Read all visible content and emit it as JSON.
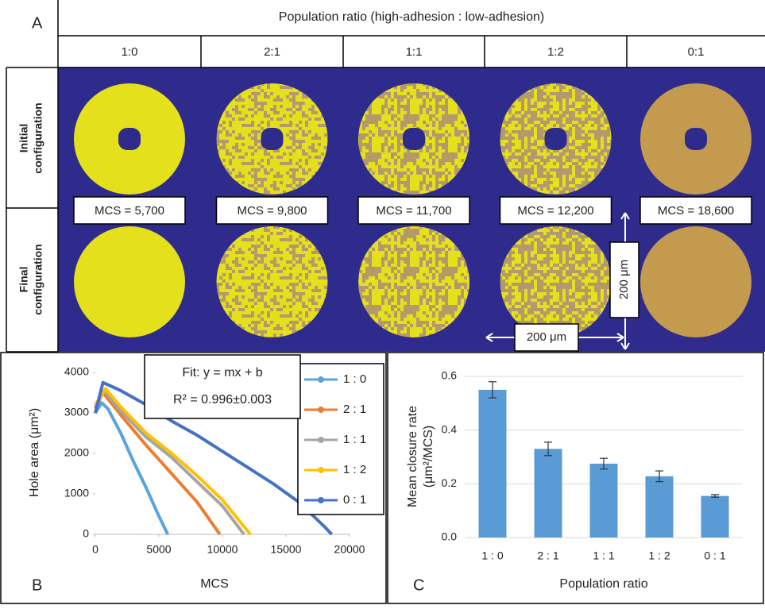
{
  "panel_a": {
    "label": "A",
    "header": "Population ratio (high-adhesion : low-adhesion)",
    "columns": [
      "1:0",
      "2:1",
      "1:1",
      "1:2",
      "0:1"
    ],
    "rows": [
      [
        "Initial",
        "configuration"
      ],
      [
        "Final",
        "configuration"
      ]
    ],
    "mcs": [
      "MCS = 5,700",
      "MCS = 9,800",
      "MCS = 11,700",
      "MCS = 12,200",
      "MCS = 18,600"
    ],
    "scale_bar": "200 μm"
  },
  "chart_data": [
    {
      "type": "line",
      "panel_label": "B",
      "xlabel": "MCS",
      "ylabel": "Hole area (μm²)",
      "annotations": [
        "Fit: y = mx + b",
        "R² = 0.996±0.003"
      ],
      "xlim": [
        0,
        20000
      ],
      "xticks": [
        0,
        5000,
        10000,
        15000,
        20000
      ],
      "ylim": [
        0,
        4000
      ],
      "yticks": [
        0,
        1000,
        2000,
        3000,
        4000
      ],
      "series": [
        {
          "name": "1 : 0",
          "color": "#5ba3dc",
          "x": [
            0,
            500,
            1000,
            2000,
            3000,
            4000,
            5000,
            5700
          ],
          "values": [
            3000,
            3250,
            3100,
            2500,
            1800,
            1150,
            450,
            0
          ]
        },
        {
          "name": "2 : 1",
          "color": "#ed7d31",
          "x": [
            0,
            600,
            2000,
            4000,
            6000,
            8000,
            9800
          ],
          "values": [
            3100,
            3500,
            2950,
            2200,
            1500,
            800,
            0
          ]
        },
        {
          "name": "1 : 1",
          "color": "#a5a5a5",
          "x": [
            0,
            700,
            2000,
            4000,
            6000,
            8000,
            10000,
            11700
          ],
          "values": [
            3150,
            3550,
            3050,
            2400,
            1900,
            1300,
            700,
            0
          ]
        },
        {
          "name": "1 : 2",
          "color": "#ffc000",
          "x": [
            0,
            800,
            2000,
            4000,
            6000,
            8000,
            10000,
            12200
          ],
          "values": [
            3200,
            3600,
            3150,
            2500,
            2000,
            1450,
            850,
            0
          ]
        },
        {
          "name": "0 : 1",
          "color": "#4472c4",
          "x": [
            0,
            600,
            2000,
            4000,
            6000,
            8000,
            10000,
            12000,
            14000,
            16000,
            18000,
            18600
          ],
          "values": [
            3000,
            3750,
            3550,
            3200,
            2800,
            2450,
            2050,
            1650,
            1250,
            800,
            200,
            0
          ]
        }
      ]
    },
    {
      "type": "bar",
      "panel_label": "C",
      "xlabel": "Population ratio",
      "ylabel": [
        "Mean closure rate",
        "(μm²/MCS)"
      ],
      "categories": [
        "1 : 0",
        "2 : 1",
        "1 : 1",
        "1 : 2",
        "0 : 1"
      ],
      "values": [
        0.55,
        0.33,
        0.275,
        0.228,
        0.155
      ],
      "errors": [
        0.03,
        0.025,
        0.02,
        0.02,
        0.005
      ],
      "color": "#5b9bd5",
      "grid": true,
      "ylim": [
        0,
        0.6
      ],
      "yticks": [
        {
          "value": 0,
          "label": "0.0"
        },
        0.2,
        0.4,
        0.6
      ]
    }
  ]
}
